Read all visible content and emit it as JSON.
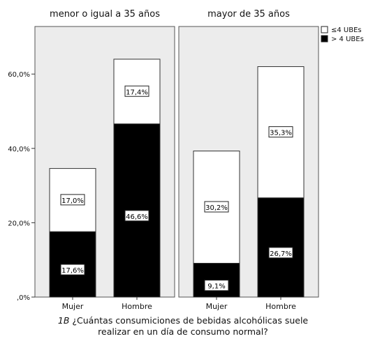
{
  "chart_data": {
    "type": "bar",
    "stacked": true,
    "yticks": [
      "60,0%",
      "40,0%",
      "20,0%",
      ",0%"
    ],
    "ylim": [
      0,
      70
    ],
    "panels": [
      {
        "title": "menor o igual a 35 años",
        "categories": [
          "Mujer",
          "Hombre"
        ],
        "series": [
          {
            "name": "> 4 UBEs",
            "values": [
              17.6,
              46.6
            ],
            "labels": [
              "17,6%",
              "46,6%"
            ]
          },
          {
            "name": "≤4 UBEs",
            "values": [
              17.0,
              17.4
            ],
            "labels": [
              "17,0%",
              "17,4%"
            ]
          }
        ]
      },
      {
        "title": "mayor de 35 años",
        "categories": [
          "Mujer",
          "Hombre"
        ],
        "series": [
          {
            "name": "> 4 UBEs",
            "values": [
              9.1,
              26.7
            ],
            "labels": [
              "9,1%",
              "26,7%"
            ]
          },
          {
            "name": "≤4 UBEs",
            "values": [
              30.2,
              35.3
            ],
            "labels": [
              "30,2%",
              "35,3%"
            ]
          }
        ]
      }
    ],
    "legend": {
      "position": "top-right",
      "items": [
        {
          "label": "≤4 UBEs",
          "color": "#ffffff"
        },
        {
          "label": "> 4 UBEs",
          "color": "#000000"
        }
      ]
    },
    "colors": {
      "panel_bg": "#ececec",
      "upper": "#ffffff",
      "lower": "#000000"
    }
  },
  "caption": {
    "figure_label": "1B",
    "line1": "¿Cuántas consumiciones de bebidas alcohólicas suele",
    "line2": "realizar en un día de consumo normal?"
  }
}
